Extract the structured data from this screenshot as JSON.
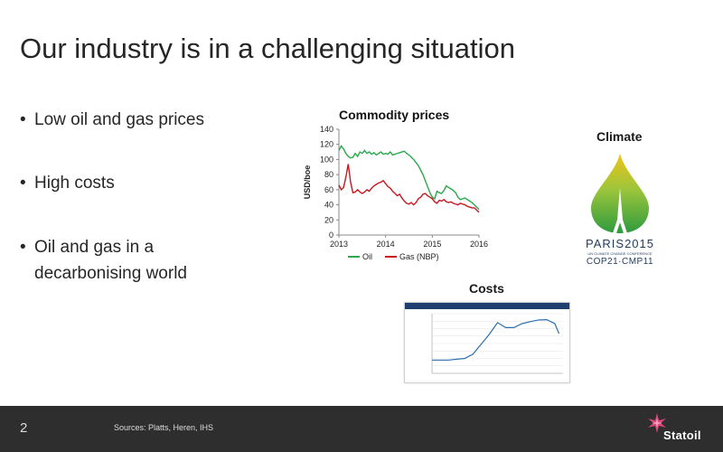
{
  "slide": {
    "title": "Our industry is in a challenging situation",
    "bullets": [
      "Low oil and gas prices",
      "High costs",
      "Oil and gas in a decarbonising world"
    ]
  },
  "commodity_chart_title": "Commodity prices",
  "climate": {
    "title": "Climate",
    "logo_text": [
      "PARIS2015",
      "UN CLIMATE CHANGE CONFERENCE",
      "COP21·CMP11"
    ]
  },
  "costs": {
    "title": "Costs"
  },
  "footer": {
    "page_number": "2",
    "sources": "Sources: Platts, Heren, IHS",
    "brand": "Statoil"
  },
  "colors": {
    "oil": "#2aa84a",
    "gas": "#c8161d",
    "footer_bg": "#2e2e2e",
    "brand_accent": "#e0457b"
  },
  "chart_data": [
    {
      "type": "line",
      "title": "Commodity prices",
      "ylabel": "USD/boe",
      "xlabel": "",
      "ylim": [
        0,
        140
      ],
      "yticks": [
        0,
        20,
        40,
        60,
        80,
        100,
        120,
        140
      ],
      "xlim": [
        2013,
        2016
      ],
      "xticks": [
        "2013",
        "2014",
        "2015",
        "2016"
      ],
      "legend_position": "bottom",
      "grid": false,
      "series": [
        {
          "name": "Oil",
          "color": "#2aa84a",
          "x": [
            2013.0,
            2013.05,
            2013.1,
            2013.15,
            2013.2,
            2013.25,
            2013.3,
            2013.35,
            2013.4,
            2013.45,
            2013.5,
            2013.55,
            2013.6,
            2013.65,
            2013.7,
            2013.75,
            2013.8,
            2013.85,
            2013.9,
            2013.95,
            2014.0,
            2014.05,
            2014.1,
            2014.15,
            2014.2,
            2014.25,
            2014.3,
            2014.35,
            2014.4,
            2014.45,
            2014.5,
            2014.55,
            2014.6,
            2014.65,
            2014.7,
            2014.75,
            2014.8,
            2014.85,
            2014.9,
            2014.95,
            2015.0,
            2015.05,
            2015.1,
            2015.15,
            2015.2,
            2015.25,
            2015.3,
            2015.35,
            2015.4,
            2015.45,
            2015.5,
            2015.55,
            2015.6,
            2015.65,
            2015.7,
            2015.75,
            2015.8,
            2015.85,
            2015.9,
            2015.95,
            2016.0
          ],
          "values": [
            112,
            118,
            114,
            108,
            104,
            102,
            103,
            108,
            104,
            110,
            108,
            112,
            108,
            110,
            107,
            109,
            106,
            108,
            110,
            107,
            108,
            107,
            110,
            106,
            107,
            108,
            109,
            110,
            111,
            108,
            106,
            103,
            100,
            96,
            92,
            86,
            80,
            72,
            64,
            56,
            50,
            48,
            58,
            56,
            55,
            59,
            65,
            63,
            61,
            59,
            56,
            50,
            47,
            48,
            49,
            47,
            45,
            43,
            40,
            37,
            34
          ]
        },
        {
          "name": "Gas (NBP)",
          "color": "#c8161d",
          "x": [
            2013.0,
            2013.05,
            2013.1,
            2013.15,
            2013.2,
            2013.25,
            2013.3,
            2013.35,
            2013.4,
            2013.45,
            2013.5,
            2013.55,
            2013.6,
            2013.65,
            2013.7,
            2013.75,
            2013.8,
            2013.85,
            2013.9,
            2013.95,
            2014.0,
            2014.05,
            2014.1,
            2014.15,
            2014.2,
            2014.25,
            2014.3,
            2014.35,
            2014.4,
            2014.45,
            2014.5,
            2014.55,
            2014.6,
            2014.65,
            2014.7,
            2014.75,
            2014.8,
            2014.85,
            2014.9,
            2014.95,
            2015.0,
            2015.05,
            2015.1,
            2015.15,
            2015.2,
            2015.25,
            2015.3,
            2015.35,
            2015.4,
            2015.45,
            2015.5,
            2015.55,
            2015.6,
            2015.65,
            2015.7,
            2015.75,
            2015.8,
            2015.85,
            2015.9,
            2015.95,
            2016.0
          ],
          "values": [
            66,
            60,
            63,
            77,
            94,
            70,
            56,
            57,
            60,
            57,
            55,
            57,
            60,
            58,
            62,
            65,
            67,
            69,
            70,
            72,
            68,
            64,
            62,
            58,
            55,
            52,
            54,
            49,
            45,
            42,
            41,
            43,
            40,
            43,
            48,
            50,
            54,
            55,
            52,
            50,
            48,
            44,
            42,
            46,
            45,
            47,
            44,
            43,
            44,
            42,
            41,
            40,
            42,
            41,
            40,
            38,
            37,
            36,
            36,
            33,
            30
          ]
        }
      ]
    },
    {
      "type": "line",
      "title": "",
      "series": [
        {
          "name": "",
          "color": "#2b6fb5",
          "x": [
            2000,
            2002,
            2004,
            2005,
            2006,
            2007,
            2008,
            2009,
            2010,
            2011,
            2012,
            2013,
            2014,
            2015,
            2015.5
          ],
          "values": [
            100,
            100,
            105,
            118,
            148,
            178,
            213,
            198,
            198,
            210,
            216,
            221,
            222,
            210,
            180
          ]
        }
      ]
    }
  ]
}
